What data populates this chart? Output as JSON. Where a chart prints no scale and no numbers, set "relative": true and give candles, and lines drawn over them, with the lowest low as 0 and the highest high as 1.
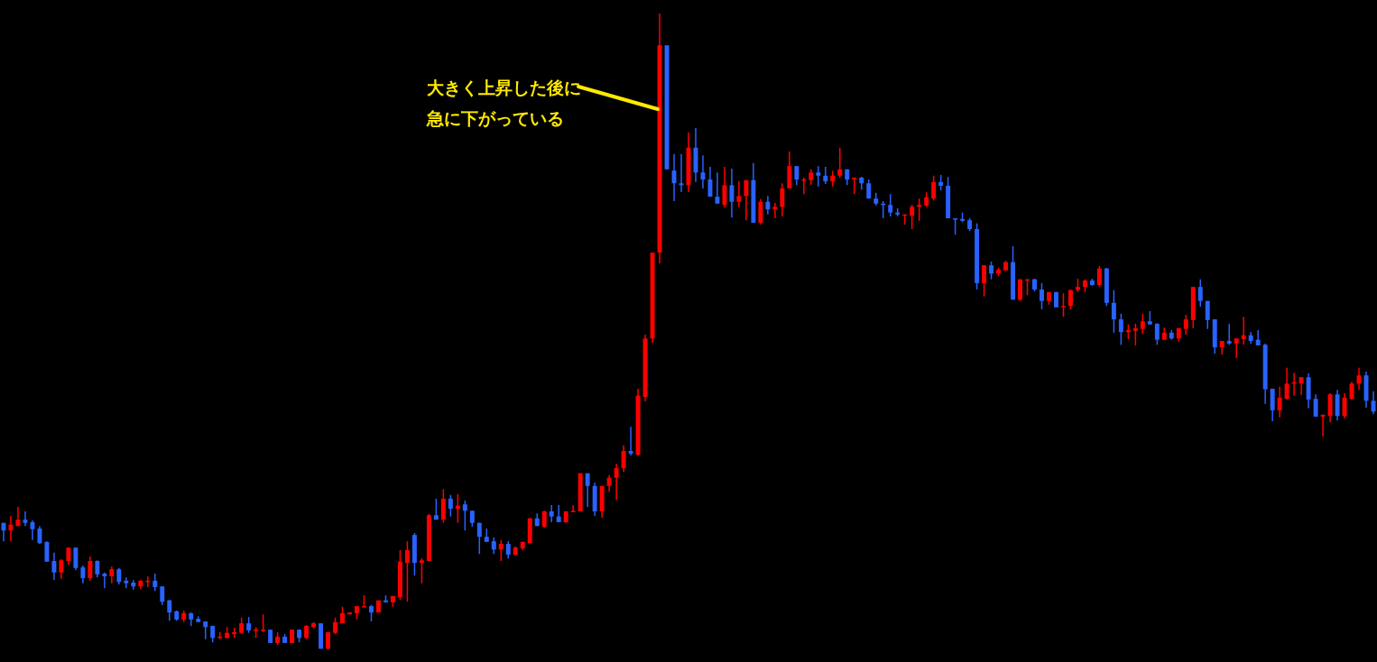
{
  "chart_data": {
    "type": "candlestick",
    "relative": true,
    "annotations": [
      "大きく上昇した後に",
      "急に下がっている"
    ],
    "categories": [
      null,
      null,
      null,
      null,
      null,
      null,
      null,
      null,
      null,
      null,
      null,
      null,
      null,
      null,
      null,
      null,
      null,
      null,
      null,
      null,
      null,
      null,
      null,
      null,
      null,
      null,
      null,
      null,
      null,
      null,
      null,
      null,
      null,
      null,
      null,
      null,
      null,
      null,
      null,
      null,
      null,
      null,
      null,
      null,
      null,
      null,
      null,
      null,
      null,
      null,
      null,
      null,
      null,
      null,
      null,
      null,
      null,
      null,
      null,
      null,
      null,
      null,
      null,
      null,
      null,
      null,
      null,
      null,
      null,
      null,
      null,
      null,
      null,
      null,
      null,
      null,
      null,
      null,
      null,
      null,
      null,
      null,
      null,
      null,
      null,
      null,
      null,
      null,
      null,
      null,
      null,
      null,
      null,
      null,
      null,
      null,
      null,
      null,
      null,
      null,
      null,
      null,
      null,
      null,
      null,
      null,
      null,
      null,
      null,
      null,
      null,
      null,
      null,
      null,
      null,
      null,
      null,
      null,
      null,
      null,
      null,
      null,
      null,
      null,
      null,
      null,
      null,
      null,
      null,
      null,
      null,
      null,
      null,
      null,
      null,
      null,
      null,
      null,
      null,
      null,
      null,
      null,
      null,
      null,
      null,
      null,
      null,
      null,
      null,
      null,
      null,
      null,
      null,
      null,
      null,
      null,
      null,
      null,
      null,
      null,
      null,
      null,
      null,
      null,
      null,
      null,
      null,
      null,
      null,
      null,
      null,
      null,
      null,
      null,
      null,
      null,
      null,
      null,
      null,
      null,
      null,
      null,
      null,
      null,
      null,
      null,
      null,
      null,
      null,
      null,
      null
    ],
    "ohlc": [
      [
        0.199,
        0.199,
        0.17,
        0.187
      ],
      [
        0.187,
        0.21,
        0.17,
        0.196
      ],
      [
        0.194,
        0.224,
        0.194,
        0.204
      ],
      [
        0.204,
        0.217,
        0.194,
        0.199
      ],
      [
        0.2,
        0.203,
        0.172,
        0.189
      ],
      [
        0.19,
        0.194,
        0.166,
        0.167
      ],
      [
        0.169,
        0.17,
        0.138,
        0.138
      ],
      [
        0.139,
        0.152,
        0.109,
        0.121
      ],
      [
        0.121,
        0.142,
        0.111,
        0.14
      ],
      [
        0.139,
        0.16,
        0.133,
        0.16
      ],
      [
        0.16,
        0.16,
        0.125,
        0.128
      ],
      [
        0.129,
        0.132,
        0.104,
        0.112
      ],
      [
        0.112,
        0.146,
        0.108,
        0.139
      ],
      [
        0.139,
        0.14,
        0.113,
        0.118
      ],
      [
        0.119,
        0.121,
        0.096,
        0.115
      ],
      [
        0.115,
        0.13,
        0.104,
        0.126
      ],
      [
        0.126,
        0.128,
        0.102,
        0.106
      ],
      [
        0.108,
        0.113,
        0.096,
        0.104
      ],
      [
        0.105,
        0.109,
        0.094,
        0.099
      ],
      [
        0.099,
        0.109,
        0.095,
        0.108
      ],
      [
        0.106,
        0.115,
        0.098,
        0.108
      ],
      [
        0.108,
        0.119,
        0.092,
        0.098
      ],
      [
        0.099,
        0.099,
        0.07,
        0.075
      ],
      [
        0.077,
        0.078,
        0.045,
        0.058
      ],
      [
        0.06,
        0.061,
        0.045,
        0.047
      ],
      [
        0.047,
        0.061,
        0.043,
        0.057
      ],
      [
        0.057,
        0.058,
        0.037,
        0.047
      ],
      [
        0.048,
        0.052,
        0.043,
        0.043
      ],
      [
        0.044,
        0.044,
        0.016,
        0.035
      ],
      [
        0.037,
        0.037,
        0.011,
        0.018
      ],
      [
        0.018,
        0.027,
        0.016,
        0.02
      ],
      [
        0.018,
        0.035,
        0.017,
        0.026
      ],
      [
        0.024,
        0.034,
        0.018,
        0.027
      ],
      [
        0.026,
        0.05,
        0.024,
        0.041
      ],
      [
        0.041,
        0.051,
        0.026,
        0.03
      ],
      [
        0.03,
        0.035,
        0.018,
        0.031
      ],
      [
        0.03,
        0.055,
        0.027,
        0.031
      ],
      [
        0.031,
        0.031,
        0.01,
        0.01
      ],
      [
        0.01,
        0.027,
        0.007,
        0.02
      ],
      [
        0.02,
        0.024,
        0.01,
        0.01
      ],
      [
        0.01,
        0.031,
        0.01,
        0.031
      ],
      [
        0.031,
        0.031,
        0.011,
        0.018
      ],
      [
        0.018,
        0.038,
        0.016,
        0.037
      ],
      [
        0.035,
        0.043,
        0.033,
        0.041
      ],
      [
        0.041,
        0.041,
        0.001,
        0.001
      ],
      [
        0.001,
        0.027,
        0,
        0.027
      ],
      [
        0.026,
        0.05,
        0.024,
        0.043
      ],
      [
        0.041,
        0.067,
        0.041,
        0.057
      ],
      [
        0.055,
        0.058,
        0.055,
        0.058
      ],
      [
        0.057,
        0.068,
        0.047,
        0.068
      ],
      [
        0.067,
        0.085,
        0.067,
        0.068
      ],
      [
        0.068,
        0.07,
        0.044,
        0.058
      ],
      [
        0.058,
        0.077,
        0.058,
        0.077
      ],
      [
        0.077,
        0.085,
        0.074,
        0.074
      ],
      [
        0.074,
        0.084,
        0.067,
        0.084
      ],
      [
        0.082,
        0.156,
        0.078,
        0.138
      ],
      [
        0.136,
        0.17,
        0.075,
        0.156
      ],
      [
        0.18,
        0.183,
        0.116,
        0.136
      ],
      [
        0.136,
        0.143,
        0.104,
        0.14
      ],
      [
        0.139,
        0.213,
        0.139,
        0.211
      ],
      [
        0.211,
        0.237,
        0.204,
        0.204
      ],
      [
        0.204,
        0.252,
        0.199,
        0.237
      ],
      [
        0.237,
        0.243,
        0.209,
        0.221
      ],
      [
        0.221,
        0.244,
        0.199,
        0.226
      ],
      [
        0.228,
        0.234,
        0.187,
        0.218
      ],
      [
        0.218,
        0.218,
        0.193,
        0.199
      ],
      [
        0.199,
        0.199,
        0.15,
        0.177
      ],
      [
        0.177,
        0.19,
        0.169,
        0.169
      ],
      [
        0.17,
        0.176,
        0.15,
        0.157
      ],
      [
        0.157,
        0.172,
        0.139,
        0.166
      ],
      [
        0.166,
        0.17,
        0.143,
        0.149
      ],
      [
        0.149,
        0.162,
        0.148,
        0.16
      ],
      [
        0.159,
        0.17,
        0.156,
        0.169
      ],
      [
        0.167,
        0.207,
        0.167,
        0.206
      ],
      [
        0.206,
        0.214,
        0.194,
        0.194
      ],
      [
        0.193,
        0.218,
        0.191,
        0.217
      ],
      [
        0.217,
        0.227,
        0.2,
        0.209
      ],
      [
        0.209,
        0.227,
        0.2,
        0.2
      ],
      [
        0.2,
        0.217,
        0.199,
        0.217
      ],
      [
        0.217,
        0.227,
        0.216,
        0.218
      ],
      [
        0.217,
        0.277,
        0.217,
        0.277
      ],
      [
        0.277,
        0.277,
        0.224,
        0.257
      ],
      [
        0.257,
        0.262,
        0.21,
        0.217
      ],
      [
        0.217,
        0.257,
        0.207,
        0.257
      ],
      [
        0.257,
        0.274,
        0.248,
        0.27
      ],
      [
        0.27,
        0.292,
        0.235,
        0.285
      ],
      [
        0.285,
        0.321,
        0.279,
        0.312
      ],
      [
        0.312,
        0.35,
        0.305,
        0.308
      ],
      [
        0.306,
        0.41,
        0.305,
        0.399
      ],
      [
        0.397,
        0.495,
        0.39,
        0.489
      ],
      [
        0.489,
        0.624,
        0.482,
        0.624
      ],
      [
        0.624,
        1,
        0.607,
        0.95
      ],
      [
        0.95,
        0.95,
        0.755,
        0.755
      ],
      [
        0.753,
        0.779,
        0.705,
        0.733
      ],
      [
        0.733,
        0.779,
        0.719,
        0.73
      ],
      [
        0.73,
        0.813,
        0.719,
        0.789
      ],
      [
        0.789,
        0.82,
        0.735,
        0.75
      ],
      [
        0.75,
        0.777,
        0.725,
        0.739
      ],
      [
        0.739,
        0.759,
        0.712,
        0.712
      ],
      [
        0.712,
        0.75,
        0.701,
        0.701
      ],
      [
        0.699,
        0.759,
        0.695,
        0.73
      ],
      [
        0.73,
        0.756,
        0.679,
        0.704
      ],
      [
        0.704,
        0.736,
        0.695,
        0.713
      ],
      [
        0.713,
        0.738,
        0.675,
        0.738
      ],
      [
        0.738,
        0.765,
        0.671,
        0.671
      ],
      [
        0.671,
        0.708,
        0.668,
        0.704
      ],
      [
        0.704,
        0.713,
        0.684,
        0.692
      ],
      [
        0.692,
        0.702,
        0.678,
        0.696
      ],
      [
        0.696,
        0.733,
        0.681,
        0.725
      ],
      [
        0.725,
        0.783,
        0.725,
        0.76
      ],
      [
        0.76,
        0.76,
        0.73,
        0.739
      ],
      [
        0.738,
        0.742,
        0.716,
        0.739
      ],
      [
        0.738,
        0.755,
        0.73,
        0.75
      ],
      [
        0.75,
        0.76,
        0.728,
        0.745
      ],
      [
        0.745,
        0.759,
        0.732,
        0.736
      ],
      [
        0.736,
        0.753,
        0.728,
        0.745
      ],
      [
        0.745,
        0.789,
        0.742,
        0.755
      ],
      [
        0.755,
        0.755,
        0.73,
        0.739
      ],
      [
        0.739,
        0.742,
        0.716,
        0.742
      ],
      [
        0.742,
        0.743,
        0.723,
        0.733
      ],
      [
        0.733,
        0.739,
        0.709,
        0.709
      ],
      [
        0.709,
        0.718,
        0.698,
        0.701
      ],
      [
        0.701,
        0.705,
        0.678,
        0.699
      ],
      [
        0.699,
        0.716,
        0.681,
        0.687
      ],
      [
        0.687,
        0.694,
        0.681,
        0.684
      ],
      [
        0.682,
        0.684,
        0.668,
        0.684
      ],
      [
        0.682,
        0.699,
        0.661,
        0.696
      ],
      [
        0.696,
        0.709,
        0.674,
        0.699
      ],
      [
        0.698,
        0.719,
        0.696,
        0.711
      ],
      [
        0.709,
        0.745,
        0.706,
        0.735
      ],
      [
        0.735,
        0.746,
        0.722,
        0.729
      ],
      [
        0.729,
        0.743,
        0.678,
        0.678
      ],
      [
        0.678,
        0.678,
        0.652,
        0.677
      ],
      [
        0.677,
        0.687,
        0.672,
        0.674
      ],
      [
        0.675,
        0.678,
        0.658,
        0.661
      ],
      [
        0.661,
        0.67,
        0.566,
        0.576
      ],
      [
        0.576,
        0.604,
        0.555,
        0.604
      ],
      [
        0.604,
        0.61,
        0.582,
        0.591
      ],
      [
        0.591,
        0.6,
        0.587,
        0.597
      ],
      [
        0.596,
        0.611,
        0.596,
        0.609
      ],
      [
        0.609,
        0.634,
        0.55,
        0.55
      ],
      [
        0.55,
        0.582,
        0.548,
        0.582
      ],
      [
        0.58,
        0.582,
        0.557,
        0.582
      ],
      [
        0.582,
        0.583,
        0.563,
        0.566
      ],
      [
        0.566,
        0.576,
        0.535,
        0.548
      ],
      [
        0.548,
        0.562,
        0.542,
        0.562
      ],
      [
        0.562,
        0.562,
        0.538,
        0.538
      ],
      [
        0.538,
        0.56,
        0.523,
        0.54
      ],
      [
        0.54,
        0.566,
        0.535,
        0.565
      ],
      [
        0.565,
        0.583,
        0.562,
        0.57
      ],
      [
        0.57,
        0.582,
        0.562,
        0.58
      ],
      [
        0.58,
        0.583,
        0.572,
        0.573
      ],
      [
        0.573,
        0.603,
        0.57,
        0.599
      ],
      [
        0.599,
        0.6,
        0.54,
        0.545
      ],
      [
        0.545,
        0.565,
        0.498,
        0.519
      ],
      [
        0.519,
        0.528,
        0.479,
        0.499
      ],
      [
        0.499,
        0.511,
        0.488,
        0.502
      ],
      [
        0.501,
        0.512,
        0.478,
        0.505
      ],
      [
        0.504,
        0.528,
        0.496,
        0.516
      ],
      [
        0.516,
        0.532,
        0.511,
        0.511
      ],
      [
        0.512,
        0.513,
        0.479,
        0.487
      ],
      [
        0.487,
        0.506,
        0.487,
        0.498
      ],
      [
        0.498,
        0.502,
        0.487,
        0.489
      ],
      [
        0.489,
        0.506,
        0.484,
        0.505
      ],
      [
        0.504,
        0.526,
        0.495,
        0.519
      ],
      [
        0.518,
        0.57,
        0.505,
        0.57
      ],
      [
        0.57,
        0.582,
        0.539,
        0.548
      ],
      [
        0.548,
        0.548,
        0.504,
        0.518
      ],
      [
        0.519,
        0.519,
        0.465,
        0.475
      ],
      [
        0.475,
        0.485,
        0.464,
        0.485
      ],
      [
        0.485,
        0.512,
        0.479,
        0.481
      ],
      [
        0.481,
        0.489,
        0.458,
        0.489
      ],
      [
        0.488,
        0.523,
        0.479,
        0.494
      ],
      [
        0.494,
        0.499,
        0.481,
        0.485
      ],
      [
        0.487,
        0.502,
        0.478,
        0.478
      ],
      [
        0.479,
        0.481,
        0.386,
        0.409
      ],
      [
        0.41,
        0.41,
        0.359,
        0.376
      ],
      [
        0.376,
        0.413,
        0.365,
        0.396
      ],
      [
        0.394,
        0.443,
        0.393,
        0.418
      ],
      [
        0.418,
        0.435,
        0.399,
        0.42
      ],
      [
        0.418,
        0.428,
        0.4,
        0.428
      ],
      [
        0.428,
        0.434,
        0.379,
        0.393
      ],
      [
        0.394,
        0.401,
        0.366,
        0.366
      ],
      [
        0.366,
        0.369,
        0.335,
        0.369
      ],
      [
        0.367,
        0.403,
        0.357,
        0.401
      ],
      [
        0.401,
        0.408,
        0.36,
        0.367
      ],
      [
        0.367,
        0.403,
        0.363,
        0.396
      ],
      [
        0.394,
        0.421,
        0.393,
        0.418
      ],
      [
        0.418,
        0.443,
        0.408,
        0.431
      ],
      [
        0.431,
        0.437,
        0.38,
        0.391
      ],
      [
        0.391,
        0.406,
        0.37,
        0.374
      ]
    ],
    "colors": [
      "#2962ff",
      "#ff0000",
      "#ff0000",
      "#2962ff",
      "#2962ff",
      "#2962ff",
      "#2962ff",
      "#2962ff",
      "#ff0000",
      "#ff0000",
      "#2962ff",
      "#2962ff",
      "#ff0000",
      "#2962ff",
      "#2962ff",
      "#ff0000",
      "#2962ff",
      "#2962ff",
      "#2962ff",
      "#ff0000",
      "#ff0000",
      "#2962ff",
      "#2962ff",
      "#2962ff",
      "#2962ff",
      "#ff0000",
      "#2962ff",
      "#2962ff",
      "#2962ff",
      "#2962ff",
      "#ff0000",
      "#ff0000",
      "#ff0000",
      "#ff0000",
      "#2962ff",
      "#ff0000",
      "#ff0000",
      "#2962ff",
      "#ff0000",
      "#2962ff",
      "#ff0000",
      "#2962ff",
      "#ff0000",
      "#ff0000",
      "#2962ff",
      "#ff0000",
      "#ff0000",
      "#ff0000",
      "#ff0000",
      "#ff0000",
      "#ff0000",
      "#2962ff",
      "#ff0000",
      "#2962ff",
      "#ff0000",
      "#ff0000",
      "#ff0000",
      "#2962ff",
      "#ff0000",
      "#ff0000",
      "#2962ff",
      "#ff0000",
      "#2962ff",
      "#ff0000",
      "#2962ff",
      "#2962ff",
      "#2962ff",
      "#2962ff",
      "#2962ff",
      "#ff0000",
      "#2962ff",
      "#ff0000",
      "#ff0000",
      "#ff0000",
      "#2962ff",
      "#ff0000",
      "#2962ff",
      "#2962ff",
      "#ff0000",
      "#ff0000",
      "#ff0000",
      "#2962ff",
      "#2962ff",
      "#ff0000",
      "#ff0000",
      "#ff0000",
      "#ff0000",
      "#2962ff",
      "#ff0000",
      "#ff0000",
      "#ff0000",
      "#ff0000",
      "#2962ff",
      "#2962ff",
      "#2962ff",
      "#ff0000",
      "#2962ff",
      "#2962ff",
      "#2962ff",
      "#2962ff",
      "#ff0000",
      "#2962ff",
      "#ff0000",
      "#ff0000",
      "#2962ff",
      "#ff0000",
      "#2962ff",
      "#ff0000",
      "#ff0000",
      "#ff0000",
      "#2962ff",
      "#ff0000",
      "#ff0000",
      "#2962ff",
      "#2962ff",
      "#ff0000",
      "#ff0000",
      "#2962ff",
      "#ff0000",
      "#2962ff",
      "#2962ff",
      "#2962ff",
      "#2962ff",
      "#2962ff",
      "#2962ff",
      "#ff0000",
      "#ff0000",
      "#ff0000",
      "#ff0000",
      "#ff0000",
      "#2962ff",
      "#2962ff",
      "#2962ff",
      "#2962ff",
      "#2962ff",
      "#2962ff",
      "#ff0000",
      "#2962ff",
      "#ff0000",
      "#ff0000",
      "#2962ff",
      "#ff0000",
      "#ff0000",
      "#2962ff",
      "#2962ff",
      "#ff0000",
      "#2962ff",
      "#ff0000",
      "#ff0000",
      "#ff0000",
      "#ff0000",
      "#2962ff",
      "#ff0000",
      "#2962ff",
      "#2962ff",
      "#2962ff",
      "#ff0000",
      "#ff0000",
      "#ff0000",
      "#2962ff",
      "#2962ff",
      "#ff0000",
      "#2962ff",
      "#ff0000",
      "#ff0000",
      "#ff0000",
      "#2962ff",
      "#2962ff",
      "#2962ff",
      "#ff0000",
      "#2962ff",
      "#ff0000",
      "#ff0000",
      "#2962ff",
      "#2962ff",
      "#2962ff",
      "#2962ff",
      "#ff0000",
      "#ff0000",
      "#ff0000",
      "#ff0000",
      "#2962ff",
      "#2962ff",
      "#ff0000",
      "#ff0000",
      "#2962ff",
      "#ff0000",
      "#ff0000",
      "#ff0000",
      "#2962ff",
      "#2962ff"
    ]
  }
}
